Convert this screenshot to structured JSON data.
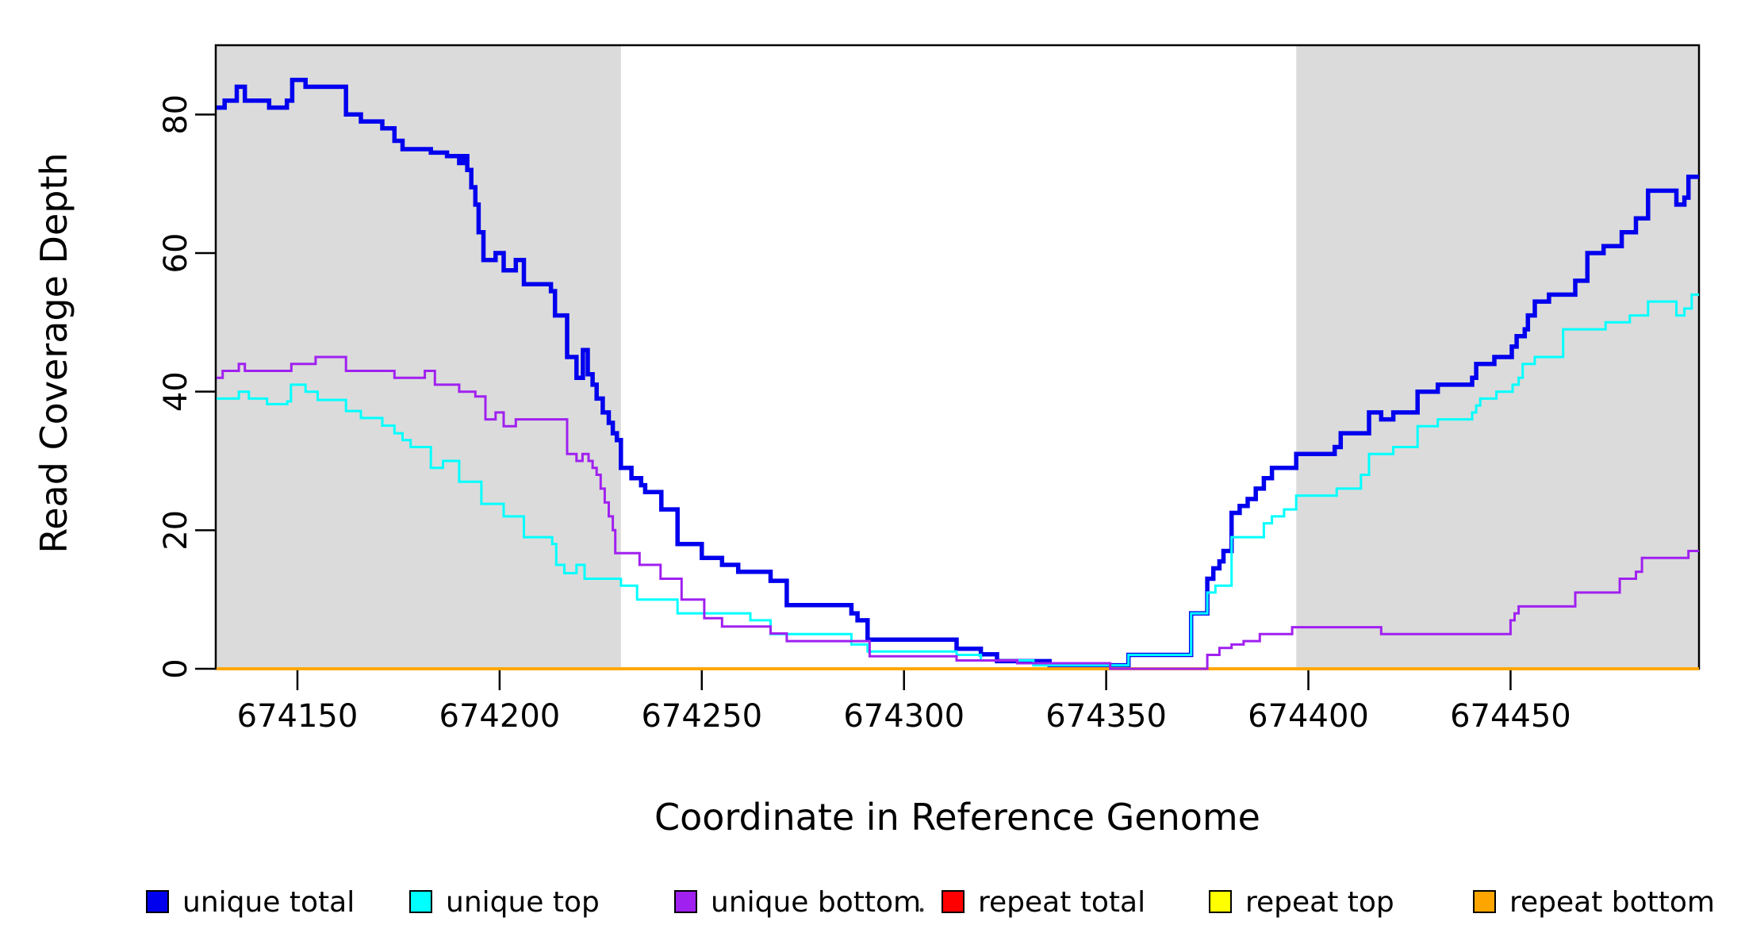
{
  "figure": {
    "background": "#FFFFFF",
    "plot_background": "#FFFFFF",
    "box_color": "#000000"
  },
  "chart_data": {
    "type": "line",
    "subtype": "step-coverage-plot",
    "title": "",
    "xlabel": "Coordinate in Reference Genome",
    "ylabel": "Read Coverage Depth",
    "xlim": [
      674129.8,
      674496.6
    ],
    "ylim": [
      0,
      90
    ],
    "xticks": [
      674150,
      674200,
      674250,
      674300,
      674350,
      674400,
      674450
    ],
    "yticks": [
      0,
      20,
      40,
      60,
      80
    ],
    "grid": false,
    "legend_position": "bottom",
    "shade_color": "#DBDBDB",
    "shaded_regions": [
      {
        "from": 674129.8,
        "to": 674230
      },
      {
        "from": 674397,
        "to": 674496.6
      }
    ],
    "series": [
      {
        "name": "unique total",
        "color": "#0000EE",
        "width": 5.5,
        "points": [
          [
            674130,
            81
          ],
          [
            674132,
            82
          ],
          [
            674135,
            84
          ],
          [
            674137,
            82
          ],
          [
            674143,
            81
          ],
          [
            674147.4,
            82
          ],
          [
            674148.7,
            85
          ],
          [
            674152,
            84
          ],
          [
            674162,
            80
          ],
          [
            674165.7,
            79
          ],
          [
            674171,
            78
          ],
          [
            674174,
            76.2
          ],
          [
            674176,
            75
          ],
          [
            674183,
            74.5
          ],
          [
            674187,
            74
          ],
          [
            674190,
            73
          ],
          [
            674191,
            74
          ],
          [
            674192,
            72
          ],
          [
            674193,
            69.5
          ],
          [
            674194,
            67
          ],
          [
            674194.8,
            63
          ],
          [
            674196,
            59
          ],
          [
            674199,
            60
          ],
          [
            674201,
            57.5
          ],
          [
            674204,
            59
          ],
          [
            674206,
            55.5
          ],
          [
            674212.7,
            54.5
          ],
          [
            674213.7,
            51
          ],
          [
            674216.7,
            45
          ],
          [
            674219,
            42
          ],
          [
            674220.6,
            46
          ],
          [
            674221.8,
            42.5
          ],
          [
            674223,
            41
          ],
          [
            674224,
            39
          ],
          [
            674225.5,
            37
          ],
          [
            674227,
            35.5
          ],
          [
            674228,
            34
          ],
          [
            674229,
            33
          ],
          [
            674230,
            29
          ],
          [
            674232.6,
            27.5
          ],
          [
            674235,
            26.5
          ],
          [
            674236,
            25.5
          ],
          [
            674240,
            23
          ],
          [
            674244,
            18
          ],
          [
            674250,
            16
          ],
          [
            674255,
            15
          ],
          [
            674259,
            14
          ],
          [
            674267,
            12.7
          ],
          [
            674271,
            9.2
          ],
          [
            674287,
            8
          ],
          [
            674288.5,
            7
          ],
          [
            674291,
            4.2
          ],
          [
            674313,
            2.9
          ],
          [
            674319,
            2.1
          ],
          [
            674323,
            1.1
          ],
          [
            674336,
            0.5
          ],
          [
            674355.5,
            2
          ],
          [
            674371,
            8
          ],
          [
            674375,
            13
          ],
          [
            674376.5,
            14.5
          ],
          [
            674378,
            15.5
          ],
          [
            674379,
            17
          ],
          [
            674381,
            22.5
          ],
          [
            674383,
            23.5
          ],
          [
            674385,
            24.5
          ],
          [
            674387,
            26
          ],
          [
            674389,
            27.5
          ],
          [
            674391,
            29
          ],
          [
            674397,
            31
          ],
          [
            674406.5,
            32
          ],
          [
            674408,
            34
          ],
          [
            674415,
            37
          ],
          [
            674418,
            36
          ],
          [
            674421,
            37
          ],
          [
            674427,
            40
          ],
          [
            674432,
            41
          ],
          [
            674440.5,
            42
          ],
          [
            674441.5,
            44
          ],
          [
            674446,
            45
          ],
          [
            674450.3,
            46.5
          ],
          [
            674451.5,
            48
          ],
          [
            674453.5,
            49
          ],
          [
            674454.3,
            51
          ],
          [
            674456,
            53
          ],
          [
            674459.5,
            54
          ],
          [
            674466,
            56
          ],
          [
            674469,
            60
          ],
          [
            674473,
            61
          ],
          [
            674477.5,
            63
          ],
          [
            674481,
            65
          ],
          [
            674484,
            69
          ],
          [
            674491,
            67
          ],
          [
            674493,
            68
          ],
          [
            674494,
            71
          ]
        ]
      },
      {
        "name": "unique top",
        "color": "#00FFFF",
        "width": 3,
        "points": [
          [
            674130,
            39
          ],
          [
            674135.5,
            40
          ],
          [
            674138,
            39
          ],
          [
            674142.5,
            38.2
          ],
          [
            674147.5,
            38.6
          ],
          [
            674148.4,
            41
          ],
          [
            674152,
            40
          ],
          [
            674155,
            38.8
          ],
          [
            674162,
            37.2
          ],
          [
            674165.7,
            36.2
          ],
          [
            674171,
            35.1
          ],
          [
            674174,
            34
          ],
          [
            674176,
            33
          ],
          [
            674178,
            32
          ],
          [
            674183,
            29
          ],
          [
            674186,
            30
          ],
          [
            674190,
            27
          ],
          [
            674195.5,
            23.8
          ],
          [
            674201,
            22
          ],
          [
            674206,
            19
          ],
          [
            674213,
            18
          ],
          [
            674214,
            15
          ],
          [
            674216,
            13.8
          ],
          [
            674219,
            15
          ],
          [
            674221,
            13
          ],
          [
            674230,
            12
          ],
          [
            674234,
            10
          ],
          [
            674244,
            8
          ],
          [
            674262,
            7
          ],
          [
            674267,
            5
          ],
          [
            674287,
            3.5
          ],
          [
            674291,
            2.5
          ],
          [
            674313,
            2
          ],
          [
            674319,
            1.2
          ],
          [
            674332,
            0.5
          ],
          [
            674355.5,
            2
          ],
          [
            674371,
            8
          ],
          [
            674375,
            11
          ],
          [
            674377,
            12
          ],
          [
            674381,
            19
          ],
          [
            674389,
            21
          ],
          [
            674391,
            22
          ],
          [
            674394,
            23
          ],
          [
            674397,
            25
          ],
          [
            674407,
            26
          ],
          [
            674413,
            28
          ],
          [
            674415,
            31
          ],
          [
            674421,
            32
          ],
          [
            674427,
            35
          ],
          [
            674432,
            36
          ],
          [
            674440.5,
            37
          ],
          [
            674441.5,
            38
          ],
          [
            674442.5,
            39
          ],
          [
            674446.5,
            40
          ],
          [
            674450.5,
            41
          ],
          [
            674452,
            42
          ],
          [
            674453,
            44
          ],
          [
            674456,
            45
          ],
          [
            674463,
            49
          ],
          [
            674473.5,
            50
          ],
          [
            674479.5,
            51
          ],
          [
            674484,
            53
          ],
          [
            674491,
            51
          ],
          [
            674493,
            52
          ],
          [
            674494.8,
            54
          ]
        ]
      },
      {
        "name": "repeat total",
        "color": "#FF0000",
        "width": 3.5,
        "points": [
          [
            674130,
            0
          ]
        ]
      },
      {
        "name": "repeat top",
        "color": "#FFFF00",
        "width": 3.5,
        "points": [
          [
            674130,
            0
          ]
        ]
      },
      {
        "name": "repeat bottom",
        "color": "#FFA500",
        "width": 3.5,
        "points": [
          [
            674130,
            0
          ]
        ]
      },
      {
        "name": "unique bottom",
        "color": "#A020F0",
        "width": 3,
        "points": [
          [
            674130,
            42
          ],
          [
            674131.5,
            43
          ],
          [
            674135.5,
            44
          ],
          [
            674137,
            43
          ],
          [
            674148.5,
            44
          ],
          [
            674154.5,
            45
          ],
          [
            674162,
            43
          ],
          [
            674174,
            42
          ],
          [
            674181.5,
            43
          ],
          [
            674184,
            41
          ],
          [
            674190,
            40
          ],
          [
            674194,
            39.3
          ],
          [
            674196.5,
            36
          ],
          [
            674199,
            37
          ],
          [
            674201,
            35
          ],
          [
            674204,
            36
          ],
          [
            674216.7,
            31
          ],
          [
            674219,
            30
          ],
          [
            674220.5,
            31
          ],
          [
            674222,
            30
          ],
          [
            674223,
            29
          ],
          [
            674224,
            28
          ],
          [
            674225,
            26
          ],
          [
            674226,
            24
          ],
          [
            674227,
            22
          ],
          [
            674228,
            20
          ],
          [
            674228.6,
            16.7
          ],
          [
            674234.6,
            15
          ],
          [
            674239.8,
            13
          ],
          [
            674245,
            10
          ],
          [
            674250.6,
            7.3
          ],
          [
            674255,
            6.1
          ],
          [
            674267,
            5.1
          ],
          [
            674271,
            4
          ],
          [
            674291.5,
            1.8
          ],
          [
            674313,
            1.2
          ],
          [
            674328,
            0.8
          ],
          [
            674351,
            0
          ],
          [
            674375,
            2
          ],
          [
            674378,
            3
          ],
          [
            674381,
            3.5
          ],
          [
            674384,
            4
          ],
          [
            674388,
            5
          ],
          [
            674396,
            6
          ],
          [
            674418,
            5
          ],
          [
            674450,
            7
          ],
          [
            674451,
            8
          ],
          [
            674452,
            9
          ],
          [
            674466,
            11
          ],
          [
            674477,
            13
          ],
          [
            674481,
            14
          ],
          [
            674482.5,
            16
          ],
          [
            674494,
            17
          ]
        ]
      }
    ]
  },
  "legend": {
    "items": [
      {
        "label": "unique total",
        "color": "#0000EE"
      },
      {
        "label": "unique top",
        "color": "#00FFFF"
      },
      {
        "label": "unique bottom",
        "color": "#A020F0"
      },
      {
        "label": "repeat total",
        "color": "#FF0000"
      },
      {
        "label": "repeat top",
        "color": "#FFFF00"
      },
      {
        "label": "repeat bottom",
        "color": "#FFA500"
      }
    ],
    "stray_mark": "."
  }
}
